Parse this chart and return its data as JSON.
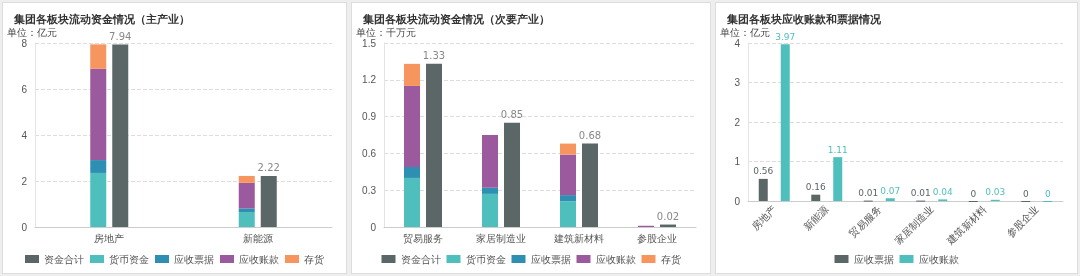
{
  "chart_data": [
    {
      "type": "bar",
      "title": "集团各板块流动资金情况（主产业）",
      "ylabel": "单位：亿元",
      "categories": [
        "房地产",
        "新能源"
      ],
      "ylim": [
        0,
        8
      ],
      "yticks": [
        0,
        2,
        4,
        6,
        8
      ],
      "grid": "y",
      "legend": "bottom",
      "series": [
        {
          "name": "资金合计",
          "color": "#5b6667",
          "values": [
            7.94,
            2.22
          ],
          "data_labels": true
        },
        {
          "name": "货币资金",
          "color": "#4fbfbd",
          "values": [
            2.35,
            0.65
          ],
          "base": [
            0,
            0
          ]
        },
        {
          "name": "应收票据",
          "color": "#2f8fb3",
          "values": [
            0.56,
            0.16
          ],
          "base": [
            2.35,
            0.65
          ]
        },
        {
          "name": "应收账款",
          "color": "#9c5a9e",
          "values": [
            3.97,
            1.11
          ],
          "base": [
            2.91,
            0.81
          ]
        },
        {
          "name": "存货",
          "color": "#f7955f",
          "values": [
            1.06,
            0.3
          ],
          "base": [
            6.88,
            1.92
          ]
        }
      ]
    },
    {
      "type": "bar",
      "title": "集团各板块流动资金情况（次要产业）",
      "ylabel": "单位：千万元",
      "categories": [
        "贸易服务",
        "家居制造业",
        "建筑新材料",
        "参股企业"
      ],
      "ylim": [
        0,
        1.5
      ],
      "yticks": [
        0,
        0.3,
        0.6,
        0.9,
        1.2,
        1.5
      ],
      "grid": "y",
      "legend": "bottom",
      "series": [
        {
          "name": "资金合计",
          "color": "#5b6667",
          "values": [
            1.33,
            0.85,
            0.68,
            0.02
          ],
          "data_labels": true
        },
        {
          "name": "货币资金",
          "color": "#4fbfbd",
          "values": [
            0.4,
            0.27,
            0.21,
            null
          ],
          "base": [
            0,
            0,
            0,
            null
          ]
        },
        {
          "name": "应收票据",
          "color": "#2f8fb3",
          "values": [
            0.09,
            0.05,
            0.05,
            null
          ],
          "base": [
            0.4,
            0.27,
            0.21,
            null
          ]
        },
        {
          "name": "应收账款",
          "color": "#9c5a9e",
          "values": [
            0.66,
            0.43,
            0.33,
            0.01
          ],
          "base": [
            0.49,
            0.32,
            0.26,
            0
          ]
        },
        {
          "name": "存货",
          "color": "#f7955f",
          "values": [
            0.18,
            null,
            0.09,
            null
          ],
          "base": [
            1.15,
            null,
            0.59,
            null
          ]
        }
      ]
    },
    {
      "type": "bar",
      "title": "集团各板块应收账款和票据情况",
      "ylabel": "单位：亿元",
      "categories": [
        "房地产",
        "新能源",
        "贸易服务",
        "家居制造业",
        "建筑新材料",
        "参股企业"
      ],
      "ylim": [
        0,
        4
      ],
      "yticks": [
        0,
        1,
        2,
        3,
        4
      ],
      "grid": "y",
      "legend": "bottom",
      "data_labels": true,
      "series": [
        {
          "name": "应收票据",
          "color": "#5b6667",
          "values": [
            0.56,
            0.16,
            0.01,
            0.01,
            0,
            0
          ]
        },
        {
          "name": "应收账款",
          "color": "#4fbfbd",
          "values": [
            3.97,
            1.11,
            0.07,
            0.04,
            0.03,
            0
          ]
        }
      ]
    }
  ]
}
